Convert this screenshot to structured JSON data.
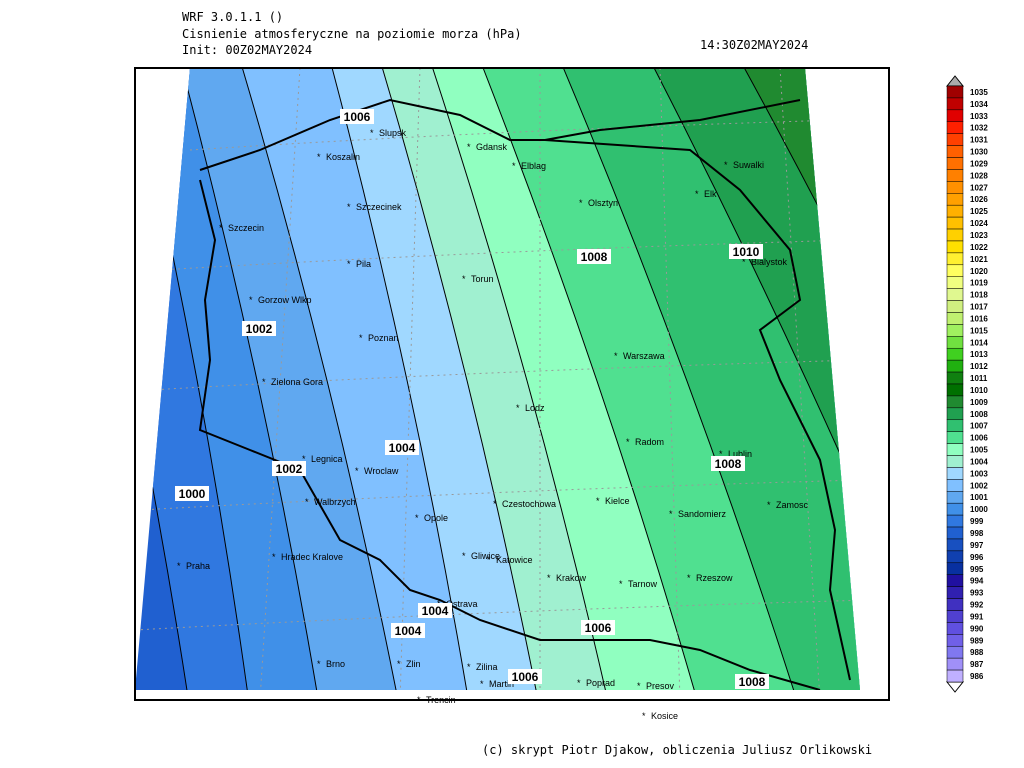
{
  "header": {
    "model": "WRF 3.0.1.1 ()",
    "title": "Cisnienie atmosferyczne na poziomie morza (hPa)",
    "init": "Init: 00Z02MAY2024",
    "valid": "14:30Z02MAY2024"
  },
  "cities": [
    "Slupsk",
    "Koszalin",
    "Gdansk",
    "Elblag",
    "Suwalki",
    "Szczecinek",
    "Olsztyn",
    "Elk",
    "Szczecin",
    "Pila",
    "Torun",
    "Bialystok",
    "Gorzow Wlkp",
    "Poznan",
    "Warszawa",
    "Zielona Gora",
    "Lodz",
    "Radom",
    "Lublin",
    "Legnica",
    "Wroclaw",
    "Walbrzych",
    "Czestochowa",
    "Kielce",
    "Sandomierz",
    "Zamosc",
    "Opole",
    "Gliwice",
    "Katowice",
    "Hradec Kralove",
    "Praha",
    "Krakow",
    "Tarnow",
    "Rzeszow",
    "Ostrava",
    "Brno",
    "Zlin",
    "Zilina",
    "Martin",
    "Poprad",
    "Presov",
    "Trencin",
    "Kosice"
  ],
  "contour_labels": [
    1006,
    1008,
    1010,
    1002,
    1004,
    1002,
    1000,
    1008,
    1004,
    1004,
    1006,
    1006,
    1008
  ],
  "colorbar": {
    "levels": [
      1035,
      1034,
      1033,
      1032,
      1031,
      1030,
      1029,
      1028,
      1027,
      1026,
      1025,
      1024,
      1023,
      1022,
      1021,
      1020,
      1019,
      1018,
      1017,
      1016,
      1015,
      1014,
      1013,
      1012,
      1011,
      1010,
      1009,
      1008,
      1007,
      1006,
      1005,
      1004,
      1003,
      1002,
      1001,
      1000,
      999,
      998,
      997,
      996,
      995,
      994,
      993,
      992,
      991,
      990,
      989,
      988,
      987,
      986
    ],
    "colors": [
      "#a00000",
      "#c00000",
      "#e00000",
      "#ff2000",
      "#ff4000",
      "#ff6000",
      "#ff7000",
      "#ff8000",
      "#ff9000",
      "#ffa000",
      "#ffb000",
      "#ffc000",
      "#ffd000",
      "#ffe000",
      "#fff030",
      "#ffff60",
      "#f0ff80",
      "#e0f890",
      "#d0f080",
      "#c0f070",
      "#a0f060",
      "#70e040",
      "#40d020",
      "#20b010",
      "#108010",
      "#007000",
      "#208a30",
      "#20a050",
      "#30c070",
      "#50e090",
      "#90ffc0",
      "#a0f0d0",
      "#a0d8ff",
      "#80c0ff",
      "#60a8f0",
      "#4090e8",
      "#3078e0",
      "#2060d0",
      "#1850c0",
      "#1040b0",
      "#0830a0",
      "#2010a0",
      "#3020b0",
      "#4030c0",
      "#5040d0",
      "#6050e0",
      "#7060e8",
      "#8078f0",
      "#a090f8",
      "#c0b0ff"
    ]
  },
  "footer": "(c) skrypt Piotr Djakow, obliczenia Juliusz Orlikowski"
}
